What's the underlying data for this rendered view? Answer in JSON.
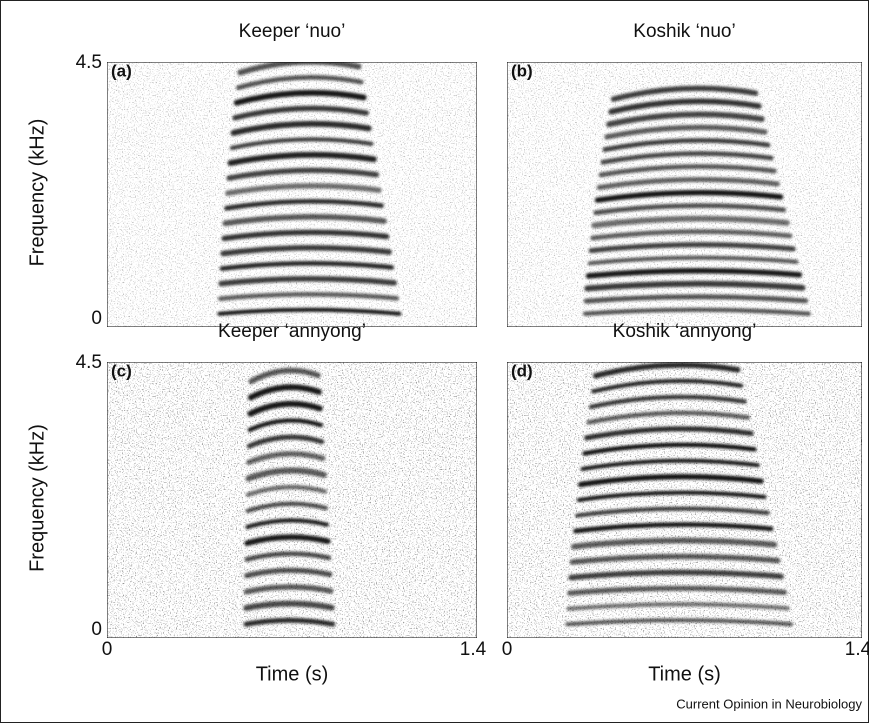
{
  "panels": [
    {
      "title": "Keeper ‘nuo’",
      "label": "(a)"
    },
    {
      "title": "Koshik ‘nuo’",
      "label": "(b)"
    },
    {
      "title": "Keeper ‘annyong’",
      "label": "(c)"
    },
    {
      "title": "Koshik ‘annyong’",
      "label": "(d)"
    }
  ],
  "rows": [
    {
      "y_label": "Frequency (kHz)",
      "y_ticks": [
        "4.5",
        "0"
      ]
    },
    {
      "y_label": "Frequency (kHz)",
      "y_ticks": [
        "4.5",
        "0"
      ]
    }
  ],
  "columns": [
    {
      "x_label": "Time (s)",
      "x_ticks": [
        "0",
        "1.4"
      ]
    },
    {
      "x_label": "Time (s)",
      "x_ticks": [
        "0",
        "1.4"
      ]
    }
  ],
  "source": "Current Opinion in Neurobiology"
}
